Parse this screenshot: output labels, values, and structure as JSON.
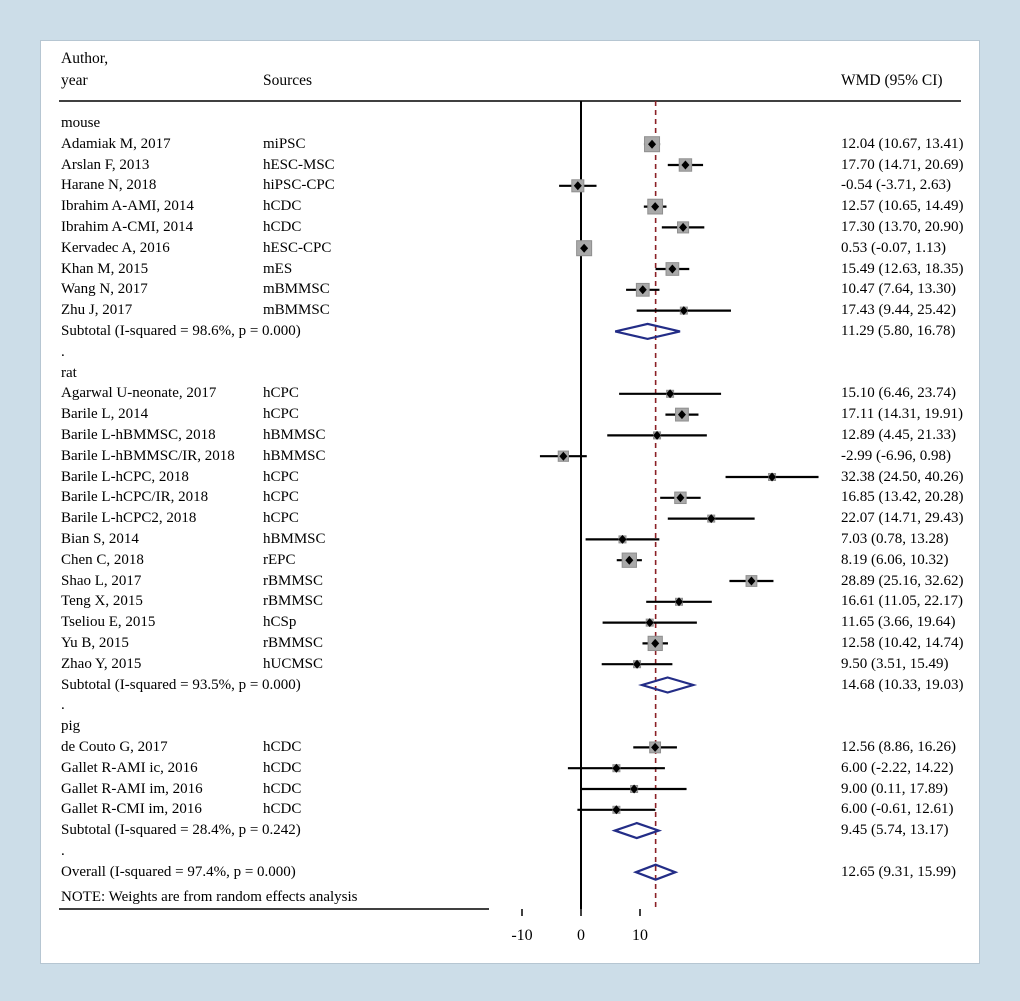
{
  "page": {
    "background": "#ccdde8",
    "panel_bg": "#ffffff"
  },
  "header": {
    "author_line1": "Author,",
    "author_line2": "year",
    "sources": "Sources",
    "wmd": "WMD (95% CI)"
  },
  "note": "NOTE: Weights are from random effects analysis",
  "colors": {
    "ci_line": "#000000",
    "weight_box": "#a9a9a9",
    "weight_box_edge": "#8f8f8f",
    "point": "#000000",
    "diamond": "#232d87",
    "zero_line": "#000000",
    "overall_dashed": "#8b2026",
    "rule": "#000000",
    "text": "#000000"
  },
  "chart_data": {
    "type": "forest",
    "xticks": [
      -10,
      0,
      10
    ],
    "null_line_x": 0,
    "overall_dashed_x": 12.65,
    "effect_measure": "WMD (95% CI)",
    "groups": [
      {
        "label": "mouse",
        "studies": [
          {
            "author": "Adamiak M, 2017",
            "source": "miPSC",
            "est": 12.04,
            "lo": 10.67,
            "hi": 13.41,
            "ci_text": "12.04 (10.67, 13.41)"
          },
          {
            "author": "Arslan F, 2013",
            "source": "hESC-MSC",
            "est": 17.7,
            "lo": 14.71,
            "hi": 20.69,
            "ci_text": "17.70 (14.71, 20.69)"
          },
          {
            "author": "Harane N, 2018",
            "source": "hiPSC-CPC",
            "est": -0.54,
            "lo": -3.71,
            "hi": 2.63,
            "ci_text": "-0.54 (-3.71, 2.63)"
          },
          {
            "author": "Ibrahim A-AMI, 2014",
            "source": "hCDC",
            "est": 12.57,
            "lo": 10.65,
            "hi": 14.49,
            "ci_text": "12.57 (10.65, 14.49)"
          },
          {
            "author": "Ibrahim A-CMI, 2014",
            "source": "hCDC",
            "est": 17.3,
            "lo": 13.7,
            "hi": 20.9,
            "ci_text": "17.30 (13.70, 20.90)"
          },
          {
            "author": "Kervadec A, 2016",
            "source": "hESC-CPC",
            "est": 0.53,
            "lo": -0.07,
            "hi": 1.13,
            "ci_text": "0.53 (-0.07, 1.13)"
          },
          {
            "author": "Khan M, 2015",
            "source": "mES",
            "est": 15.49,
            "lo": 12.63,
            "hi": 18.35,
            "ci_text": "15.49 (12.63, 18.35)"
          },
          {
            "author": "Wang N, 2017",
            "source": "mBMMSC",
            "est": 10.47,
            "lo": 7.64,
            "hi": 13.3,
            "ci_text": "10.47 (7.64, 13.30)"
          },
          {
            "author": "Zhu J, 2017",
            "source": "mBMMSC",
            "est": 17.43,
            "lo": 9.44,
            "hi": 25.42,
            "ci_text": "17.43 (9.44, 25.42)"
          }
        ],
        "subtotal": {
          "label": "Subtotal  (I-squared = 98.6%, p = 0.000)",
          "est": 11.29,
          "lo": 5.8,
          "hi": 16.78,
          "ci_text": "11.29 (5.80, 16.78)"
        }
      },
      {
        "label": "rat",
        "studies": [
          {
            "author": "Agarwal U-neonate, 2017",
            "source": "hCPC",
            "est": 15.1,
            "lo": 6.46,
            "hi": 23.74,
            "ci_text": "15.10 (6.46, 23.74)"
          },
          {
            "author": "Barile L, 2014",
            "source": "hCPC",
            "est": 17.11,
            "lo": 14.31,
            "hi": 19.91,
            "ci_text": "17.11 (14.31, 19.91)"
          },
          {
            "author": "Barile L-hBMMSC, 2018",
            "source": "hBMMSC",
            "est": 12.89,
            "lo": 4.45,
            "hi": 21.33,
            "ci_text": "12.89 (4.45, 21.33)"
          },
          {
            "author": "Barile L-hBMMSC/IR, 2018",
            "source": "hBMMSC",
            "est": -2.99,
            "lo": -6.96,
            "hi": 0.98,
            "ci_text": "-2.99 (-6.96, 0.98)"
          },
          {
            "author": "Barile L-hCPC, 2018",
            "source": "hCPC",
            "est": 32.38,
            "lo": 24.5,
            "hi": 40.26,
            "ci_text": "32.38 (24.50, 40.26)"
          },
          {
            "author": "Barile L-hCPC/IR, 2018",
            "source": "hCPC",
            "est": 16.85,
            "lo": 13.42,
            "hi": 20.28,
            "ci_text": "16.85 (13.42, 20.28)"
          },
          {
            "author": "Barile L-hCPC2, 2018",
            "source": "hCPC",
            "est": 22.07,
            "lo": 14.71,
            "hi": 29.43,
            "ci_text": "22.07 (14.71, 29.43)"
          },
          {
            "author": "Bian S, 2014",
            "source": "hBMMSC",
            "est": 7.03,
            "lo": 0.78,
            "hi": 13.28,
            "ci_text": "7.03 (0.78, 13.28)"
          },
          {
            "author": "Chen C, 2018",
            "source": "rEPC",
            "est": 8.19,
            "lo": 6.06,
            "hi": 10.32,
            "ci_text": "8.19 (6.06, 10.32)"
          },
          {
            "author": "Shao L, 2017",
            "source": "rBMMSC",
            "est": 28.89,
            "lo": 25.16,
            "hi": 32.62,
            "ci_text": "28.89 (25.16, 32.62)"
          },
          {
            "author": "Teng X, 2015",
            "source": "rBMMSC",
            "est": 16.61,
            "lo": 11.05,
            "hi": 22.17,
            "ci_text": "16.61 (11.05, 22.17)"
          },
          {
            "author": "Tseliou E, 2015",
            "source": "hCSp",
            "est": 11.65,
            "lo": 3.66,
            "hi": 19.64,
            "ci_text": "11.65 (3.66, 19.64)"
          },
          {
            "author": "Yu B, 2015",
            "source": "rBMMSC",
            "est": 12.58,
            "lo": 10.42,
            "hi": 14.74,
            "ci_text": "12.58 (10.42, 14.74)"
          },
          {
            "author": "Zhao Y, 2015",
            "source": "hUCMSC",
            "est": 9.5,
            "lo": 3.51,
            "hi": 15.49,
            "ci_text": "9.50 (3.51, 15.49)"
          }
        ],
        "subtotal": {
          "label": "Subtotal  (I-squared = 93.5%, p = 0.000)",
          "est": 14.68,
          "lo": 10.33,
          "hi": 19.03,
          "ci_text": "14.68 (10.33, 19.03)"
        }
      },
      {
        "label": "pig",
        "studies": [
          {
            "author": "de Couto G, 2017",
            "source": "hCDC",
            "est": 12.56,
            "lo": 8.86,
            "hi": 16.26,
            "ci_text": "12.56 (8.86, 16.26)"
          },
          {
            "author": "Gallet R-AMI ic, 2016",
            "source": "hCDC",
            "est": 6.0,
            "lo": -2.22,
            "hi": 14.22,
            "ci_text": "6.00 (-2.22, 14.22)"
          },
          {
            "author": "Gallet R-AMI im, 2016",
            "source": "hCDC",
            "est": 9.0,
            "lo": 0.11,
            "hi": 17.89,
            "ci_text": "9.00 (0.11, 17.89)"
          },
          {
            "author": "Gallet R-CMI im, 2016",
            "source": "hCDC",
            "est": 6.0,
            "lo": -0.61,
            "hi": 12.61,
            "ci_text": "6.00 (-0.61, 12.61)"
          }
        ],
        "subtotal": {
          "label": "Subtotal  (I-squared = 28.4%, p = 0.242)",
          "est": 9.45,
          "lo": 5.74,
          "hi": 13.17,
          "ci_text": "9.45 (5.74, 13.17)"
        }
      }
    ],
    "overall": {
      "label": "Overall  (I-squared = 97.4%, p = 0.000)",
      "est": 12.65,
      "lo": 9.31,
      "hi": 15.99,
      "ci_text": "12.65 (9.31, 15.99)"
    }
  }
}
